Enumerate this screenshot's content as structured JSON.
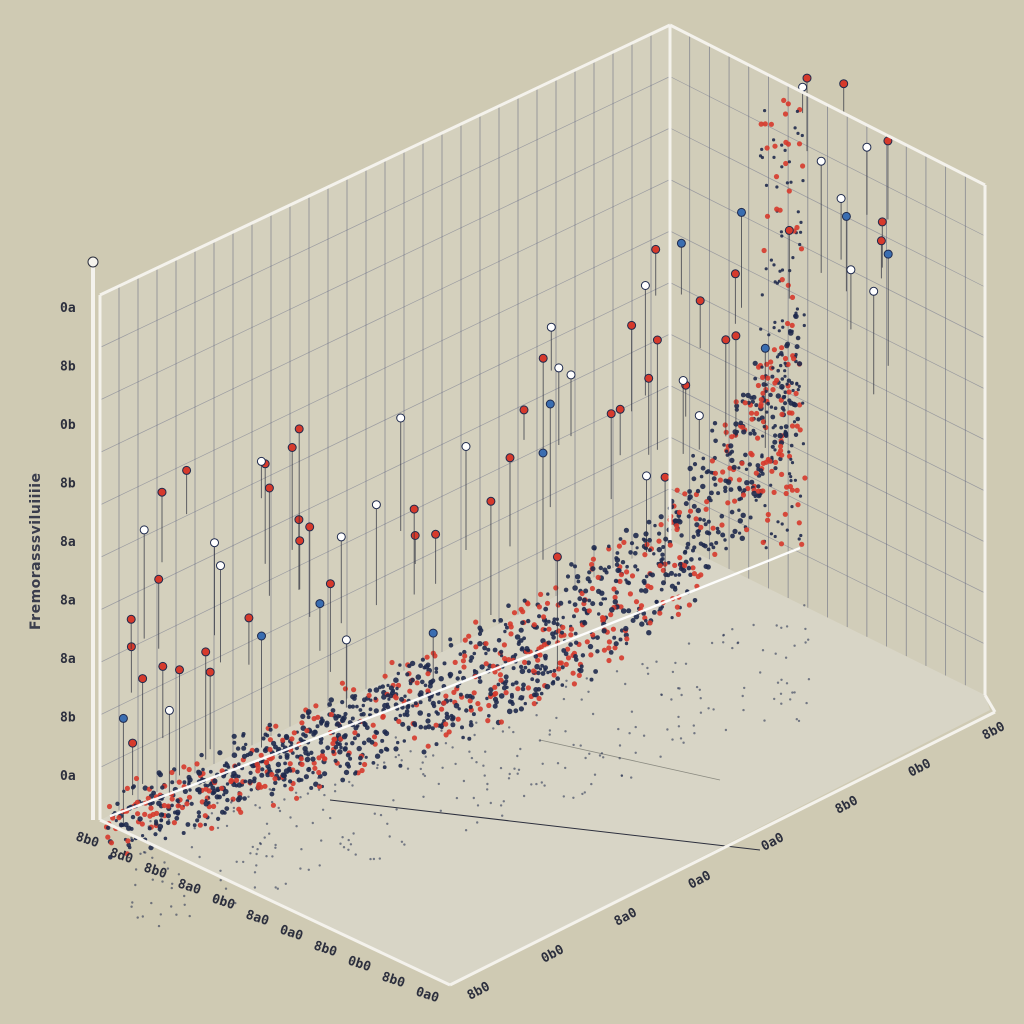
{
  "chart_data": {
    "type": "scatter",
    "title": "",
    "ylabel": "Fremorasssviluiiiie",
    "yticks": [
      "0a",
      "8b",
      "0b",
      "8b",
      "8a",
      "8a",
      "8a",
      "8b",
      "0a"
    ],
    "xticks": [
      "8b0",
      "0b0",
      "8a0",
      "0a0",
      "0a0",
      "8b0",
      "0b0",
      "8b0"
    ],
    "zticks": [
      "8b0",
      "8d0",
      "8b0",
      "8a0",
      "0b0",
      "8a0",
      "0a0",
      "8b0",
      "0b0",
      "8b0",
      "0a0"
    ],
    "grid": true,
    "trend": "exponential",
    "series": [
      {
        "color": "#1f2a4d"
      },
      {
        "color": "#d63a2c"
      }
    ]
  }
}
